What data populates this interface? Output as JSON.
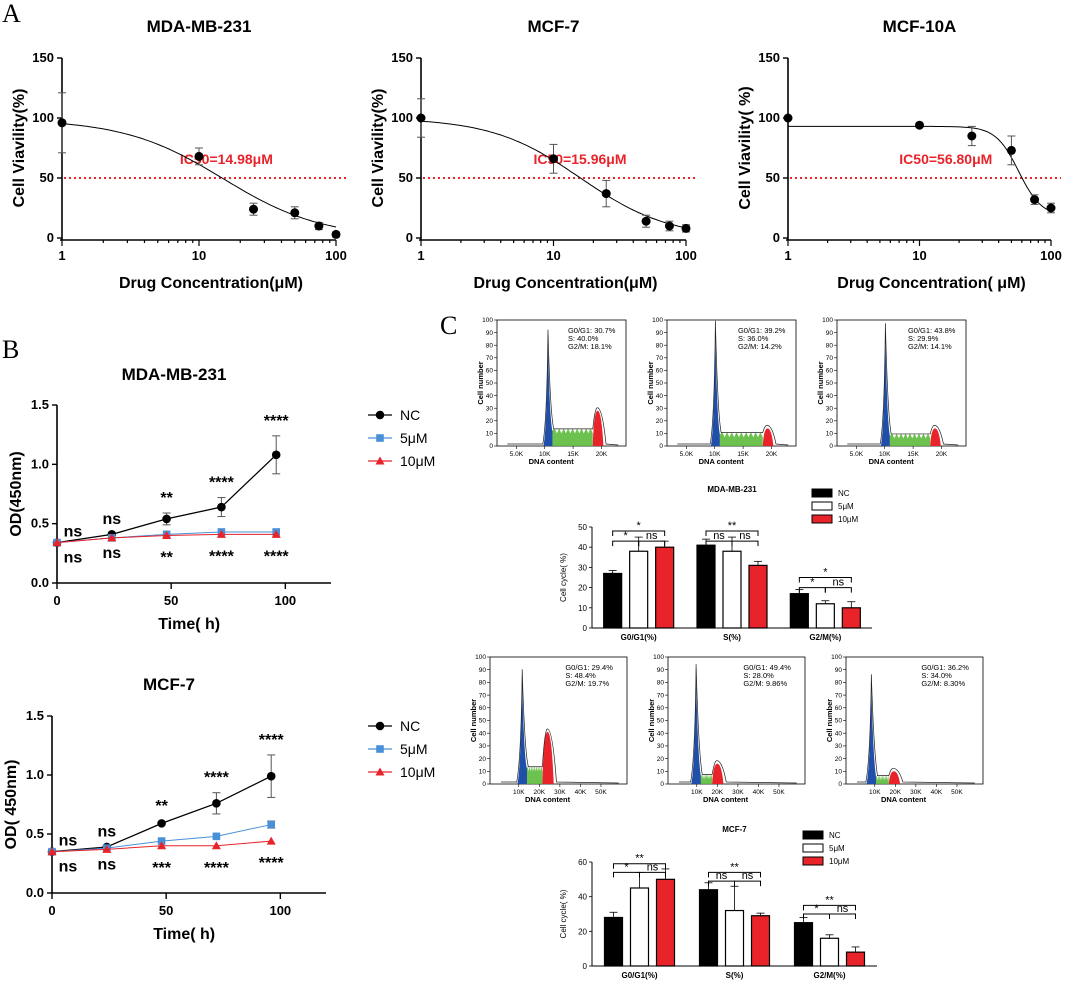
{
  "panel_labels": {
    "a": "A",
    "b": "B",
    "c": "C"
  },
  "colors": {
    "nc": "#000000",
    "low": "#4a90d9",
    "high": "#e8232a",
    "blue_peak": "#1f4fa8",
    "green": "#5dbb3c",
    "red": "#e8232a"
  },
  "chart_data": [
    {
      "id": "ic50-mda",
      "type": "scatter",
      "title": "MDA-MB-231",
      "xlabel": "Drug Concentration(μM)",
      "ylabel": "Cell Viavility(%)",
      "x_scale": "log",
      "xlim": [
        1,
        100
      ],
      "ylim": [
        0,
        150
      ],
      "xticks": [
        "1",
        "10",
        "100"
      ],
      "yticks": [
        "0",
        "50",
        "100",
        "150"
      ],
      "ic50_label": "IC50=14.98μM",
      "ic50": 14.98,
      "reference_line": 50,
      "hill": 1.2,
      "top": 99,
      "bottom": 0,
      "points": [
        {
          "x": 1,
          "y": 96,
          "err": 25
        },
        {
          "x": 10,
          "y": 68,
          "err": 7
        },
        {
          "x": 25,
          "y": 24,
          "err": 5
        },
        {
          "x": 50,
          "y": 21,
          "err": 5
        },
        {
          "x": 75,
          "y": 10,
          "err": 3
        },
        {
          "x": 100,
          "y": 3,
          "err": 2
        }
      ]
    },
    {
      "id": "ic50-mcf7",
      "type": "scatter",
      "title": "MCF-7",
      "xlabel": "Drug Concentration(μM)",
      "ylabel": "Cell Viavility(%)",
      "x_scale": "log",
      "xlim": [
        1,
        100
      ],
      "ylim": [
        0,
        150
      ],
      "xticks": [
        "1",
        "10",
        "100"
      ],
      "yticks": [
        "0",
        "50",
        "100",
        "150"
      ],
      "ic50_label": "IC50=15.96μM",
      "ic50": 15.96,
      "reference_line": 50,
      "hill": 1.3,
      "top": 100,
      "bottom": 0,
      "points": [
        {
          "x": 1,
          "y": 100,
          "err": 16
        },
        {
          "x": 10,
          "y": 66,
          "err": 12
        },
        {
          "x": 25,
          "y": 37,
          "err": 11
        },
        {
          "x": 50,
          "y": 14,
          "err": 5
        },
        {
          "x": 75,
          "y": 10,
          "err": 4
        },
        {
          "x": 100,
          "y": 8,
          "err": 3
        }
      ]
    },
    {
      "id": "ic50-mcf10a",
      "type": "scatter",
      "title": "MCF-10A",
      "xlabel": "Drug Concentration(  μM)",
      "ylabel": "Cell Viavility(  %)",
      "x_scale": "log",
      "xlim": [
        1,
        100
      ],
      "ylim": [
        0,
        150
      ],
      "xticks": [
        "1",
        "10",
        "100"
      ],
      "yticks": [
        "0",
        "50",
        "100",
        "150"
      ],
      "ic50_label": "IC50=56.80μM",
      "ic50": 56.8,
      "reference_line": 50,
      "hill": 5,
      "top": 93,
      "bottom": 18,
      "points": [
        {
          "x": 1,
          "y": 100,
          "err": 0
        },
        {
          "x": 10,
          "y": 94,
          "err": 0
        },
        {
          "x": 25,
          "y": 85,
          "err": 8
        },
        {
          "x": 50,
          "y": 73,
          "err": 12
        },
        {
          "x": 75,
          "y": 32,
          "err": 4
        },
        {
          "x": 100,
          "y": 25,
          "err": 4
        }
      ]
    },
    {
      "id": "od-mda",
      "type": "line",
      "title": "MDA-MB-231",
      "xlabel": "Time(  h)",
      "ylabel": "OD(450nm)",
      "xlim": [
        0,
        120
      ],
      "ylim": [
        0,
        1.5
      ],
      "xticks": [
        "0",
        "50",
        "100"
      ],
      "yticks": [
        "0.0",
        "0.5",
        "1.0",
        "1.5"
      ],
      "x": [
        0,
        24,
        48,
        72,
        96
      ],
      "series": [
        {
          "name": "NC",
          "values": [
            0.34,
            0.41,
            0.54,
            0.64,
            1.08
          ],
          "err": [
            0.02,
            0.02,
            0.05,
            0.08,
            0.16
          ]
        },
        {
          "name": "5μM",
          "values": [
            0.34,
            0.38,
            0.41,
            0.43,
            0.43
          ],
          "err": [
            0.01,
            0.01,
            0.01,
            0.01,
            0.01
          ]
        },
        {
          "name": "10μM",
          "values": [
            0.34,
            0.38,
            0.4,
            0.41,
            0.41
          ],
          "err": [
            0.01,
            0.01,
            0.01,
            0.01,
            0.01
          ]
        }
      ],
      "upper_sig": [
        "ns",
        "ns",
        "**",
        "****",
        "****"
      ],
      "lower_sig": [
        "ns",
        "ns",
        "**",
        "****",
        "****"
      ],
      "legend": [
        "NC",
        "5μM",
        "10μM"
      ]
    },
    {
      "id": "od-mcf7",
      "type": "line",
      "title": "MCF-7",
      "xlabel": "Time(  h)",
      "ylabel": "OD(  450nm)",
      "xlim": [
        0,
        120
      ],
      "ylim": [
        0,
        1.5
      ],
      "xticks": [
        "0",
        "50",
        "100"
      ],
      "yticks": [
        "0.0",
        "0.5",
        "1.0",
        "1.5"
      ],
      "x": [
        0,
        24,
        48,
        72,
        96
      ],
      "series": [
        {
          "name": "NC",
          "values": [
            0.35,
            0.39,
            0.59,
            0.76,
            0.99
          ],
          "err": [
            0.02,
            0.02,
            0.02,
            0.09,
            0.18
          ]
        },
        {
          "name": "5μM",
          "values": [
            0.35,
            0.38,
            0.44,
            0.48,
            0.58
          ],
          "err": [
            0.01,
            0.01,
            0.02,
            0.02,
            0.03
          ]
        },
        {
          "name": "10μM",
          "values": [
            0.35,
            0.37,
            0.4,
            0.4,
            0.44
          ],
          "err": [
            0.01,
            0.01,
            0.01,
            0.01,
            0.01
          ]
        }
      ],
      "upper_sig": [
        "ns",
        "ns",
        "**",
        "****",
        "****"
      ],
      "lower_sig": [
        "ns",
        "ns",
        "***",
        "****",
        "****"
      ],
      "legend": [
        "NC",
        "5μM",
        "10μM"
      ]
    },
    {
      "id": "flow-mda",
      "type": "area",
      "cell_line": "MDA-MB-231",
      "xlabel": "DNA content",
      "ylabel": "Cell number",
      "yticks": [
        "0",
        "10",
        "20",
        "30",
        "40",
        "50",
        "60",
        "70",
        "80",
        "90",
        "100"
      ],
      "xticks": [
        "5.0K",
        "10K",
        "15K",
        "20K"
      ],
      "histograms": [
        {
          "g0g1": "G0/G1: 30.7%",
          "s": "S: 40.0%",
          "g2m": "G2/M: 18.1%",
          "g1_height": 90,
          "g2_height": 28,
          "s_level": 12
        },
        {
          "g0g1": "G0/G1: 39.2%",
          "s": "S: 36.0%",
          "g2m": "G2/M: 14.2%",
          "g1_height": 97,
          "g2_height": 14,
          "s_level": 9
        },
        {
          "g0g1": "G0/G1: 43.8%",
          "s": "S: 29.9%",
          "g2m": "G2/M: 14.1%",
          "g1_height": 95,
          "g2_height": 14,
          "s_level": 8
        }
      ]
    },
    {
      "id": "bar-mda",
      "type": "bar",
      "title": "MDA-MB-231",
      "ylabel": "Cell cycle(  %)",
      "ylim": [
        0,
        50
      ],
      "yticks": [
        "0",
        "10",
        "20",
        "30",
        "40",
        "50"
      ],
      "categories": [
        "G0/G1(%)",
        "S(%)",
        "G2/M(%)"
      ],
      "series": [
        {
          "name": "NC",
          "values": [
            27,
            41,
            17
          ],
          "err": [
            1.5,
            3,
            2
          ]
        },
        {
          "name": "5μM",
          "values": [
            38,
            38,
            12
          ],
          "err": [
            7,
            7,
            1.5
          ]
        },
        {
          "name": "10μM",
          "values": [
            40,
            31,
            10
          ],
          "err": [
            3,
            2,
            3
          ]
        }
      ],
      "significance": [
        {
          "text": "*",
          "group": 0,
          "from": 0,
          "to": 2,
          "y": 48
        },
        {
          "text": "*",
          "group": 0,
          "from": 0,
          "to": 1,
          "y": 43
        },
        {
          "text": "ns",
          "group": 0,
          "from": 1,
          "to": 2,
          "y": 43
        },
        {
          "text": "**",
          "group": 1,
          "from": 0,
          "to": 2,
          "y": 48
        },
        {
          "text": "ns",
          "group": 1,
          "from": 0,
          "to": 1,
          "y": 43
        },
        {
          "text": "ns",
          "group": 1,
          "from": 1,
          "to": 2,
          "y": 43
        },
        {
          "text": "*",
          "group": 2,
          "from": 0,
          "to": 2,
          "y": 25
        },
        {
          "text": "*",
          "group": 2,
          "from": 0,
          "to": 1,
          "y": 20
        },
        {
          "text": "ns",
          "group": 2,
          "from": 1,
          "to": 2,
          "y": 20
        }
      ]
    },
    {
      "id": "flow-mcf7",
      "type": "area",
      "cell_line": "MCF-7",
      "xlabel": "DNA content",
      "ylabel": "Cell number",
      "yticks": [
        "0",
        "10",
        "20",
        "30",
        "40",
        "50",
        "60",
        "70",
        "80",
        "90",
        "100"
      ],
      "xticks": [
        "10K",
        "20K",
        "30K",
        "40K",
        "50K"
      ],
      "histograms": [
        {
          "g0g1": "G0/G1: 29.4%",
          "s": "S: 48.4%",
          "g2m": "G2/M: 19.7%",
          "g1_height": 88,
          "g2_height": 41,
          "s_level": 12
        },
        {
          "g0g1": "G0/G1: 49.4%",
          "s": "S: 28.0%",
          "g2m": "G2/M: 9.86%",
          "g1_height": 92,
          "g2_height": 16,
          "s_level": 6
        },
        {
          "g0g1": "G0/G1: 36.2%",
          "s": "S: 34.0%",
          "g2m": "G2/M: 8.30%",
          "g1_height": 84,
          "g2_height": 10,
          "s_level": 5
        }
      ]
    },
    {
      "id": "bar-mcf7",
      "type": "bar",
      "title": "MCF-7",
      "ylabel": "Cell cycle(  %)",
      "ylim": [
        0,
        60
      ],
      "yticks": [
        "0",
        "20",
        "40",
        "60"
      ],
      "categories": [
        "G0/G1(%)",
        "S(%)",
        "G2/M(%)"
      ],
      "series": [
        {
          "name": "NC",
          "values": [
            28,
            44,
            25
          ],
          "err": [
            3,
            4,
            3
          ]
        },
        {
          "name": "5μM",
          "values": [
            45,
            32,
            16
          ],
          "err": [
            9,
            14,
            2
          ]
        },
        {
          "name": "10μM",
          "values": [
            50,
            29,
            8
          ],
          "err": [
            6,
            1.5,
            3
          ]
        }
      ],
      "significance": [
        {
          "text": "**",
          "group": 0,
          "from": 0,
          "to": 2,
          "y": 59
        },
        {
          "text": "*",
          "group": 0,
          "from": 0,
          "to": 1,
          "y": 54
        },
        {
          "text": "ns",
          "group": 0,
          "from": 1,
          "to": 2,
          "y": 54
        },
        {
          "text": "**",
          "group": 1,
          "from": 0,
          "to": 2,
          "y": 54
        },
        {
          "text": "ns",
          "group": 1,
          "from": 0,
          "to": 1,
          "y": 49
        },
        {
          "text": "ns",
          "group": 1,
          "from": 1,
          "to": 2,
          "y": 49
        },
        {
          "text": "**",
          "group": 2,
          "from": 0,
          "to": 2,
          "y": 35
        },
        {
          "text": "*",
          "group": 2,
          "from": 0,
          "to": 1,
          "y": 30
        },
        {
          "text": "ns",
          "group": 2,
          "from": 1,
          "to": 2,
          "y": 30
        }
      ]
    }
  ]
}
